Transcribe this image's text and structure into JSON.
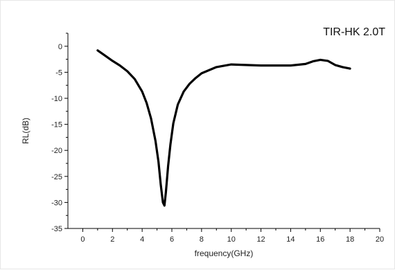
{
  "chart_data": {
    "type": "line",
    "title": "",
    "annotation": "TIR-HK 2.0T",
    "xlabel": "frequency(GHz)",
    "ylabel": "RL(dB)",
    "xlim": [
      -1,
      20
    ],
    "ylim": [
      -35,
      2.5
    ],
    "x_ticks": [
      0,
      2,
      4,
      6,
      8,
      10,
      12,
      14,
      16,
      18,
      20
    ],
    "y_ticks": [
      0,
      -5,
      -10,
      -15,
      -20,
      -25,
      -30,
      -35
    ],
    "x_tick_labels": [
      "0",
      "2",
      "4",
      "6",
      "8",
      "10",
      "12",
      "14",
      "16",
      "18",
      "20"
    ],
    "y_tick_labels": [
      "0",
      "-5",
      "-10",
      "-15",
      "-20",
      "-25",
      "-30",
      "-35"
    ],
    "grid": false,
    "legend": "none",
    "series": [
      {
        "color": "#000000",
        "x": [
          1.0,
          1.5,
          2.0,
          2.5,
          3.0,
          3.5,
          4.0,
          4.3,
          4.6,
          4.9,
          5.1,
          5.25,
          5.4,
          5.5,
          5.6,
          5.75,
          5.9,
          6.1,
          6.4,
          6.8,
          7.2,
          7.6,
          8.0,
          9.0,
          10.0,
          11.0,
          12.0,
          13.0,
          14.0,
          15.0,
          15.5,
          16.0,
          16.5,
          17.0,
          17.5,
          18.0
        ],
        "y": [
          -0.8,
          -1.8,
          -2.8,
          -3.7,
          -4.8,
          -6.3,
          -8.7,
          -10.9,
          -13.9,
          -18.2,
          -22.2,
          -26.5,
          -30.0,
          -30.6,
          -28.0,
          -23.0,
          -18.9,
          -14.8,
          -11.2,
          -8.7,
          -7.2,
          -6.1,
          -5.2,
          -4.0,
          -3.5,
          -3.6,
          -3.7,
          -3.7,
          -3.7,
          -3.4,
          -2.9,
          -2.6,
          -2.8,
          -3.6,
          -4.0,
          -4.3
        ]
      }
    ]
  }
}
